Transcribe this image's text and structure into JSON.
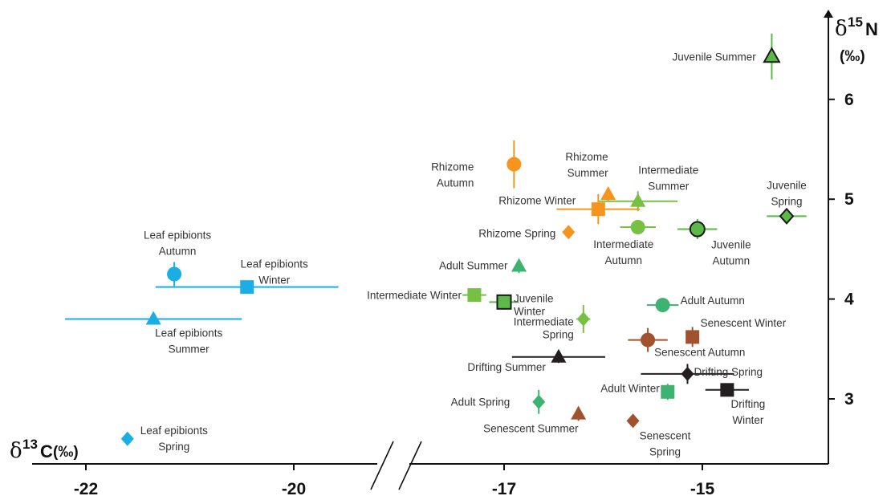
{
  "chart_data": {
    "type": "scatter",
    "x_axis": {
      "symbol_prefix": "δ",
      "superscript": "13",
      "symbol": "C",
      "unit": "(‰)",
      "ticks": [
        -22,
        -20,
        -17,
        -15
      ],
      "axis_break": true
    },
    "y_axis": {
      "symbol_prefix": "δ",
      "superscript": "15",
      "symbol": "N",
      "unit": "(‰)",
      "ticks": [
        3,
        4,
        5,
        6
      ],
      "ylim": [
        2.35,
        6.9
      ]
    },
    "grid": false,
    "colors": {
      "leaf_epibionts": "#1aaee5",
      "rhizome": "#f7941d",
      "adult": "#3cb371",
      "intermediate": "#77c043",
      "juvenile": "#5bb947",
      "senescent": "#a0522d",
      "drifting": "#231f20"
    },
    "points": [
      {
        "label": "Juvenile Summer",
        "lines": [
          "Juvenile Summer"
        ],
        "x": -14.3,
        "y": 6.43,
        "xerr": 0,
        "yerr": 0.23,
        "marker": "triangle",
        "color": "#5bb947",
        "outlined": true
      },
      {
        "label": "Rhizome Autumn",
        "lines": [
          "Rhizome",
          "Autumn"
        ],
        "x": -16.9,
        "y": 5.35,
        "xerr": 0,
        "yerr": 0.24,
        "marker": "circle",
        "color": "#f7941d"
      },
      {
        "label": "Rhizome Summer",
        "lines": [
          "Rhizome",
          "Summer"
        ],
        "x": -15.95,
        "y": 5.05,
        "xerr": 0,
        "yerr": 0.07,
        "marker": "triangle",
        "color": "#f7941d"
      },
      {
        "label": "Intermediate Summer",
        "lines": [
          "Intermediate",
          "Summer"
        ],
        "x": -15.65,
        "y": 4.98,
        "xerr": 0.4,
        "yerr": 0.1,
        "marker": "triangle",
        "color": "#77c043"
      },
      {
        "label": "Rhizome Winter",
        "lines": [
          "Rhizome Winter"
        ],
        "x": -16.05,
        "y": 4.9,
        "xerr": 0.42,
        "yerr": 0.15,
        "marker": "square",
        "color": "#f7941d"
      },
      {
        "label": "Juvenile Spring",
        "lines": [
          "Juvenile",
          "Spring"
        ],
        "x": -14.15,
        "y": 4.83,
        "xerr": 0.2,
        "yerr": 0,
        "marker": "diamond",
        "color": "#5bb947",
        "outlined": true
      },
      {
        "label": "Intermediate Autumn",
        "lines": [
          "Intermediate",
          "Autumn"
        ],
        "x": -15.65,
        "y": 4.72,
        "xerr": 0.18,
        "yerr": 0,
        "marker": "circle",
        "color": "#77c043"
      },
      {
        "label": "Juvenile Autumn",
        "lines": [
          "Juvenile",
          "Autumn"
        ],
        "x": -15.05,
        "y": 4.7,
        "xerr": 0.2,
        "yerr": 0.1,
        "marker": "circle",
        "color": "#5bb947",
        "outlined": true
      },
      {
        "label": "Rhizome Spring",
        "lines": [
          "Rhizome Spring"
        ],
        "x": -16.35,
        "y": 4.67,
        "xerr": 0,
        "yerr": 0,
        "marker": "diamond",
        "color": "#f7941d"
      },
      {
        "label": "Adult Summer",
        "lines": [
          "Adult Summer"
        ],
        "x": -16.85,
        "y": 4.33,
        "xerr": 0,
        "yerr": 0.07,
        "marker": "triangle",
        "color": "#3cb371"
      },
      {
        "label": "Leaf epibionts Autumn",
        "lines": [
          "Leaf epibionts",
          "Autumn"
        ],
        "x": -21.15,
        "y": 4.25,
        "xerr": 0,
        "yerr": 0.12,
        "marker": "circle",
        "color": "#1aaee5"
      },
      {
        "label": "Leaf epibionts Winter",
        "lines": [
          "Leaf epibionts",
          "Winter"
        ],
        "x": -20.45,
        "y": 4.12,
        "xerr": 0.88,
        "yerr": 0,
        "marker": "square",
        "color": "#1aaee5"
      },
      {
        "label": "Intermediate Winter",
        "lines": [
          "Intermediate Winter"
        ],
        "x": -17.3,
        "y": 4.04,
        "xerr": 0.12,
        "yerr": 0,
        "marker": "square",
        "color": "#77c043"
      },
      {
        "label": "Juvenile Winter",
        "lines": [
          "Juvenile",
          "Winter"
        ],
        "x": -17.0,
        "y": 3.97,
        "xerr": 0.15,
        "yerr": 0,
        "marker": "square",
        "color": "#5bb947",
        "outlined": true
      },
      {
        "label": "Adult Autumn",
        "lines": [
          "Adult Autumn"
        ],
        "x": -15.4,
        "y": 3.94,
        "xerr": 0.16,
        "yerr": 0,
        "marker": "circle",
        "color": "#3cb371"
      },
      {
        "label": "Leaf epibionts Summer",
        "lines": [
          "Leaf epibionts",
          "Summer"
        ],
        "x": -21.35,
        "y": 3.8,
        "xerr": 0.85,
        "yerr": 0,
        "marker": "triangle",
        "color": "#1aaee5"
      },
      {
        "label": "Intermediate Spring",
        "lines": [
          "Intermediate",
          "Spring"
        ],
        "x": -16.2,
        "y": 3.8,
        "xerr": 0.07,
        "yerr": 0.14,
        "marker": "diamond",
        "color": "#77c043"
      },
      {
        "label": "Senescent Winter",
        "lines": [
          "Senescent Winter"
        ],
        "x": -15.1,
        "y": 3.62,
        "xerr": 0,
        "yerr": 0.1,
        "marker": "square",
        "color": "#a0522d"
      },
      {
        "label": "Senescent Autumn",
        "lines": [
          "Senescent Autumn"
        ],
        "x": -15.55,
        "y": 3.59,
        "xerr": 0.2,
        "yerr": 0.12,
        "marker": "circle",
        "color": "#a0522d"
      },
      {
        "label": "Drifting Summer",
        "lines": [
          "Drifting Summer"
        ],
        "x": -16.45,
        "y": 3.42,
        "xerr": 0.47,
        "yerr": 0.06,
        "marker": "triangle",
        "color": "#231f20"
      },
      {
        "label": "Drifting Spring",
        "lines": [
          "Drifting Spring"
        ],
        "x": -15.15,
        "y": 3.25,
        "xerr": 0.47,
        "yerr": 0.1,
        "marker": "diamond",
        "color": "#231f20"
      },
      {
        "label": "Adult Winter",
        "lines": [
          "Adult Winter"
        ],
        "x": -15.35,
        "y": 3.07,
        "xerr": 0,
        "yerr": 0.08,
        "marker": "square",
        "color": "#3cb371"
      },
      {
        "label": "Drifting Winter",
        "lines": [
          "Drifting",
          "Winter"
        ],
        "x": -14.75,
        "y": 3.09,
        "xerr": 0.22,
        "yerr": 0,
        "marker": "square",
        "color": "#231f20"
      },
      {
        "label": "Adult Spring",
        "lines": [
          "Adult Spring"
        ],
        "x": -16.65,
        "y": 2.97,
        "xerr": 0,
        "yerr": 0.12,
        "marker": "diamond",
        "color": "#3cb371"
      },
      {
        "label": "Senescent Summer",
        "lines": [
          "Senescent Summer"
        ],
        "x": -16.25,
        "y": 2.85,
        "xerr": 0,
        "yerr": 0.07,
        "marker": "triangle",
        "color": "#a0522d"
      },
      {
        "label": "Senescent Spring",
        "lines": [
          "Senescent",
          "Spring"
        ],
        "x": -15.7,
        "y": 2.78,
        "xerr": 0,
        "yerr": 0,
        "marker": "diamond",
        "color": "#a0522d"
      },
      {
        "label": "Leaf epibionts Spring",
        "lines": [
          "Leaf epibionts",
          "Spring"
        ],
        "x": -21.6,
        "y": 2.6,
        "xerr": 0,
        "yerr": 0,
        "marker": "diamond",
        "color": "#1aaee5"
      }
    ]
  }
}
